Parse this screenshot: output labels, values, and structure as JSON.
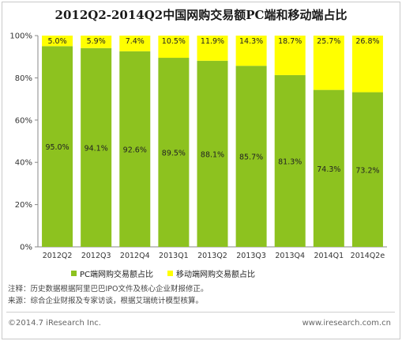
{
  "title": "2012Q2-2014Q2中国网购交易额PC端和移动端占比",
  "chart_data": {
    "type": "bar",
    "stacked": true,
    "categories": [
      "2012Q2",
      "2012Q3",
      "2012Q4",
      "2013Q1",
      "2013Q2",
      "2013Q3",
      "2013Q4",
      "2014Q1",
      "2014Q2e"
    ],
    "series": [
      {
        "name": "PC端网购交易额占比",
        "color": "#8dc21f",
        "values": [
          95.0,
          94.1,
          92.6,
          89.5,
          88.1,
          85.7,
          81.3,
          74.3,
          73.2
        ],
        "labels": [
          "95.0%",
          "94.1%",
          "92.6%",
          "89.5%",
          "88.1%",
          "85.7%",
          "81.3%",
          "74.3%",
          "73.2%"
        ]
      },
      {
        "name": "移动端网购交易额占比",
        "color": "#ffff00",
        "values": [
          5.0,
          5.9,
          7.4,
          10.5,
          11.9,
          14.3,
          18.7,
          25.7,
          26.8
        ],
        "labels": [
          "5.0%",
          "5.9%",
          "7.4%",
          "10.5%",
          "11.9%",
          "14.3%",
          "18.7%",
          "25.7%",
          "26.8%"
        ]
      }
    ],
    "ylim": [
      0,
      100
    ],
    "yticks": [
      "0%",
      "20%",
      "40%",
      "60%",
      "80%",
      "100%"
    ],
    "legend_position": "bottom"
  },
  "notes": {
    "line1": "注释：历史数据根据阿里巴巴IPO文件及核心企业财报修正。",
    "line2": "来源：综合企业财报及专家访谈，根据艾瑞统计模型核算。"
  },
  "footer": {
    "copyright": "©2014.7 iResearch Inc.",
    "website": "www.iresearch.com.cn"
  }
}
